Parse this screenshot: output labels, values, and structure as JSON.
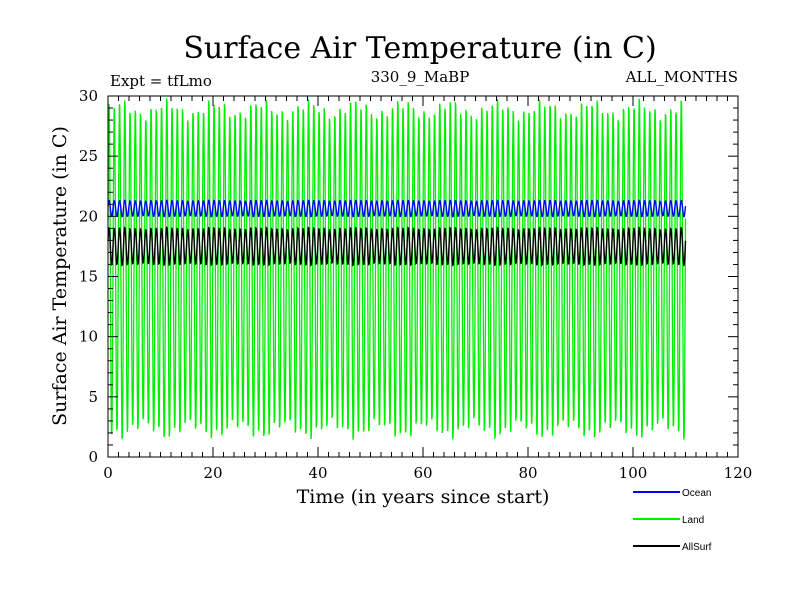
{
  "chart_data": {
    "type": "line",
    "title": "Surface Air Temperature (in C)",
    "subtitle_left": "Expt = tfLmo",
    "subtitle_center": "330_9_MaBP",
    "subtitle_right": "ALL_MONTHS",
    "xlabel": "Time (in years since start)",
    "ylabel": "Surface Air Temperature (in C)",
    "xlim": [
      0,
      120
    ],
    "ylim": [
      0,
      30
    ],
    "xticks": [
      0,
      20,
      40,
      60,
      80,
      100,
      120
    ],
    "yticks": [
      0,
      5,
      10,
      15,
      20,
      25,
      30
    ],
    "grid": false,
    "legend_position": "bottom-right",
    "x_end": 110,
    "series": [
      {
        "name": "Ocean",
        "color": "#0000ff",
        "min": 20.0,
        "max": 21.3,
        "mean": 20.6
      },
      {
        "name": "Land",
        "color": "#00ee00",
        "min": 2.0,
        "max": 29.2,
        "mean": 15.5
      },
      {
        "name": "AllSurf",
        "color": "#000000",
        "min": 16.0,
        "max": 19.0,
        "mean": 17.5
      }
    ]
  }
}
